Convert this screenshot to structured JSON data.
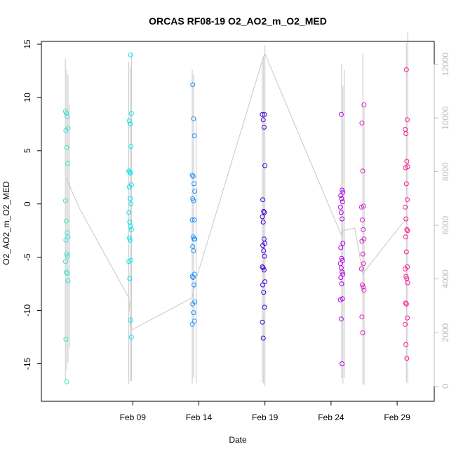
{
  "chart_data": {
    "type": "scatter",
    "title": "ORCAS RF08-19 O2_AO2_m_O2_MED",
    "xlabel": "Date",
    "ylabel": "O2_AO2_m_O2_MED",
    "x_ticks": [
      "Feb 09",
      "Feb 14",
      "Feb 19",
      "Feb 24",
      "Feb 29"
    ],
    "x_tick_days": [
      9,
      14,
      19,
      24,
      29
    ],
    "xlim_days": [
      3.2,
      30.8
    ],
    "ylim": [
      -18,
      15
    ],
    "y_ticks": [
      -15,
      -10,
      -5,
      0,
      5,
      10,
      15
    ],
    "y2_ticks": [
      0,
      2000,
      4000,
      6000,
      8000,
      10000,
      12000
    ],
    "y2lim": [
      -350,
      12750
    ],
    "y2_color": "#bdbdbd",
    "series": [
      {
        "color": "#40e0d0",
        "x_day": 4.0,
        "y": [
          8.7,
          8.5,
          8.2,
          7.1,
          6.9,
          5.3,
          3.8,
          0.3,
          -1.6,
          -2.7,
          -3.1,
          -3.4,
          -4.7,
          -4.9,
          -5.4,
          -6.4,
          -6.5,
          -7.2,
          -12.7,
          -16.7
        ]
      },
      {
        "color": "#00e5ee",
        "x_day": 8.8,
        "y": [
          14.0,
          8.5,
          7.8,
          7.5,
          5.4,
          3.1,
          3.0,
          2.9,
          1.8,
          1.6,
          0.5,
          0.0,
          -0.8,
          -1.7,
          -2.1,
          -2.4,
          -3.2,
          -3.4,
          -5.3,
          -5.4,
          -7.0,
          -10.9,
          -12.5
        ]
      },
      {
        "color": "#1e90ff",
        "x_day": 13.6,
        "y": [
          11.2,
          8.0,
          6.4,
          2.7,
          2.6,
          1.9,
          1.2,
          0.5,
          0.3,
          -1.5,
          -1.5,
          -3.1,
          -3.3,
          -3.3,
          -4.0,
          -4.4,
          -6.6,
          -6.8,
          -6.9,
          -7.6,
          -9.2,
          -9.4,
          -10.2,
          -11.0,
          -11.3
        ]
      },
      {
        "color": "#3a00d8",
        "x_day": 18.9,
        "y": [
          8.4,
          8.4,
          7.9,
          7.2,
          3.6,
          0.4,
          -0.7,
          -0.8,
          -1.2,
          -1.7,
          -3.3,
          -3.7,
          -3.9,
          -4.4,
          -4.9,
          -5.9,
          -6.0,
          -6.2,
          -7.3,
          -7.6,
          -8.3,
          -9.7,
          -11.1,
          -12.6
        ]
      },
      {
        "color": "#b000e8",
        "x_day": 24.8,
        "y": [
          8.4,
          1.3,
          1.1,
          0.8,
          0.5,
          0.2,
          -0.3,
          -0.8,
          -1.4,
          -3.7,
          -4.1,
          -5.1,
          -5.3,
          -5.6,
          -6.0,
          -6.4,
          -6.6,
          -6.9,
          -7.5,
          -8.9,
          -9.0,
          -10.8,
          -15.0
        ]
      },
      {
        "color": "#d81ec8",
        "x_day": 26.4,
        "y": [
          9.3,
          7.6,
          3.1,
          -0.2,
          -0.3,
          -1.5,
          -2.4,
          -3.3,
          -3.5,
          -4.7,
          -5.6,
          -6.1,
          -7.6,
          -7.8,
          -8.1,
          -10.6,
          -12.1
        ]
      },
      {
        "color": "#ff1493",
        "x_day": 29.7,
        "y": [
          12.6,
          7.9,
          7.0,
          6.6,
          4.0,
          3.5,
          3.4,
          1.9,
          0.4,
          -0.3,
          -1.4,
          -2.4,
          -2.5,
          -3.1,
          -4.5,
          -5.9,
          -6.1,
          -6.8,
          -7.0,
          -7.4,
          -9.3,
          -9.4,
          -10.7,
          -11.3,
          -13.2,
          -14.5
        ]
      }
    ],
    "gray_line": {
      "color": "#c8c8c8",
      "axis": "right",
      "x_day": [
        4.0,
        4.1,
        5.0,
        8.7,
        8.9,
        13.5,
        13.8,
        18.9,
        19.0,
        24.8,
        24.9,
        25.8,
        26.4,
        29.6,
        29.8
      ],
      "y2": [
        7800,
        7600,
        6600,
        3300,
        2100,
        3300,
        4000,
        12300,
        12400,
        5600,
        5800,
        5900,
        4200,
        6200,
        6200
      ]
    },
    "gray_spikes": {
      "color": "#c8c8c8",
      "axis": "right",
      "x_day": [
        3.9,
        4.0,
        4.1,
        4.2,
        8.7,
        8.8,
        8.9,
        13.5,
        13.6,
        13.8,
        18.8,
        18.9,
        19.0,
        24.8,
        24.9,
        25.0,
        26.4,
        26.5,
        29.7,
        29.8
      ],
      "y2_min": [
        200,
        600,
        900,
        1400,
        100,
        200,
        200,
        100,
        300,
        100,
        150,
        100,
        0,
        300,
        100,
        300,
        100,
        50,
        150,
        100
      ],
      "y2_max": [
        12200,
        11800,
        11600,
        10500,
        12100,
        11900,
        12400,
        11800,
        11600,
        10000,
        12200,
        12300,
        12700,
        12000,
        11200,
        11800,
        12400,
        10400,
        12800,
        13200
      ]
    }
  }
}
